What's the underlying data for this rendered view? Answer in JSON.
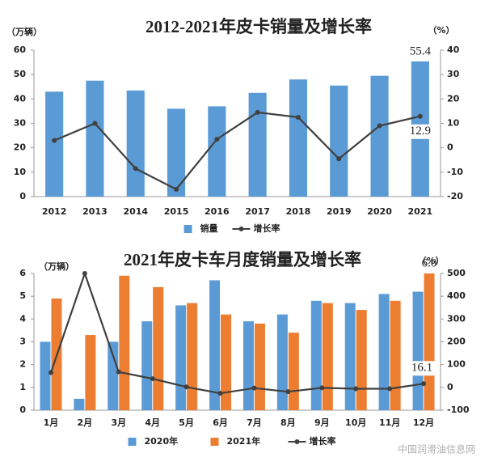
{
  "chart_data": [
    {
      "type": "bar",
      "title": "2012-2021年皮卡销量及增长率",
      "ylabel": "（万辆）",
      "y2label": "（%）",
      "categories": [
        "2012",
        "2013",
        "2014",
        "2015",
        "2016",
        "2017",
        "2018",
        "2019",
        "2020",
        "2021"
      ],
      "series": [
        {
          "name": "销量",
          "type": "bar",
          "color": "#5b9bd5",
          "values": [
            43,
            47.5,
            43.5,
            36,
            37,
            42.5,
            48,
            45.5,
            49.5,
            55.4
          ],
          "value_labels": [
            null,
            null,
            null,
            null,
            null,
            null,
            null,
            null,
            null,
            "55.4"
          ]
        },
        {
          "name": "增长率",
          "type": "line",
          "axis": "y2",
          "color": "#404040",
          "values": [
            3,
            10,
            -8.5,
            -17,
            3.5,
            14.5,
            12.5,
            -4.5,
            9,
            12.9
          ],
          "value_labels": [
            null,
            null,
            null,
            null,
            null,
            null,
            null,
            null,
            null,
            "12.9"
          ]
        }
      ],
      "ylim": [
        0,
        60
      ],
      "yticks": [
        0,
        10,
        20,
        30,
        40,
        50,
        60
      ],
      "y2lim": [
        -20,
        40
      ],
      "y2ticks": [
        -20,
        -10,
        0,
        10,
        20,
        30,
        40
      ],
      "grid": false,
      "legend": "bottom"
    },
    {
      "type": "bar",
      "title": "2021年皮卡车月度销量及增长率",
      "ylabel": "（万辆）",
      "y2label": "（%）",
      "categories": [
        "1月",
        "2月",
        "3月",
        "4月",
        "5月",
        "6月",
        "7月",
        "8月",
        "9月",
        "10月",
        "11月",
        "12月"
      ],
      "series": [
        {
          "name": "2020年",
          "type": "bar",
          "color": "#5b9bd5",
          "values": [
            3.0,
            0.5,
            3.0,
            3.9,
            4.6,
            5.7,
            3.9,
            4.2,
            4.8,
            4.7,
            5.1,
            5.2
          ]
        },
        {
          "name": "2021年",
          "type": "bar",
          "color": "#ed7d31",
          "values": [
            4.9,
            3.3,
            5.9,
            5.4,
            4.7,
            4.2,
            3.8,
            3.4,
            4.7,
            4.4,
            4.8,
            6
          ],
          "value_labels": [
            null,
            null,
            null,
            null,
            null,
            null,
            null,
            null,
            null,
            null,
            null,
            "6.0"
          ]
        },
        {
          "name": "增长率",
          "type": "line",
          "axis": "y2",
          "color": "#404040",
          "values": [
            65,
            500,
            68,
            38,
            2,
            -26,
            -3,
            -19,
            -2,
            -6,
            -6,
            16.1
          ],
          "value_labels": [
            null,
            null,
            null,
            null,
            null,
            null,
            null,
            null,
            null,
            null,
            null,
            "16.1"
          ]
        }
      ],
      "ylim": [
        0,
        6
      ],
      "yticks": [
        0,
        1,
        2,
        3,
        4,
        5,
        6
      ],
      "y2lim": [
        -100,
        500
      ],
      "y2ticks": [
        -100,
        0,
        100,
        200,
        300,
        400,
        500
      ],
      "grid": false,
      "legend": "bottom"
    }
  ],
  "watermark": "中国润滑油信息网"
}
